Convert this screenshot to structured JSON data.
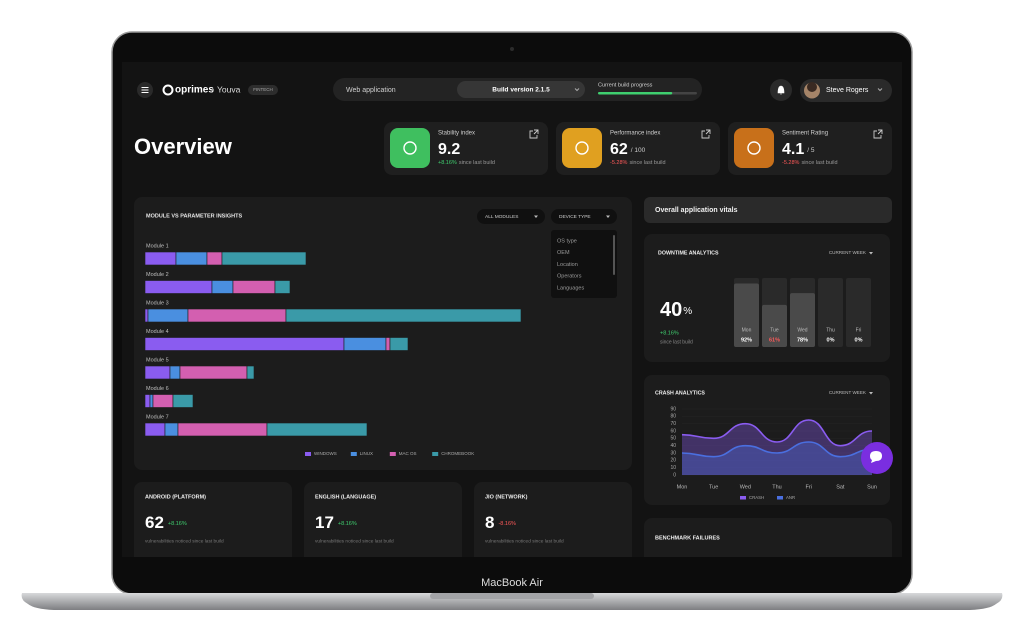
{
  "device": {
    "label": "MacBook Air"
  },
  "header": {
    "brand": "oprimes",
    "project": "Youva",
    "tag": "FINTECH",
    "app_type": "Web application",
    "build": "Build version 2.1.5",
    "progress_label": "Current build progress",
    "progress": 75,
    "user": "Steve Rogers"
  },
  "page_title": "Overview",
  "kpis": [
    {
      "title": "Stability index",
      "value": 9.2,
      "change": "+8.16%",
      "note": "since last build",
      "color": "#3fbf5f"
    },
    {
      "title": "Performance index",
      "value": 62,
      "unit": "/ 100",
      "change": "-5.28%",
      "note": "since last build",
      "color": "#e0a020"
    },
    {
      "title": "Sentiment Rating",
      "value": 4.1,
      "unit": "/ 5",
      "change": "-5.28%",
      "note": "since last build",
      "color": "#c8701a"
    }
  ],
  "module_chart": {
    "type": "bar",
    "orientation": "horizontal",
    "stacked": true,
    "title": "MODULE VS PARAMETER INSIGHTS",
    "filters": [
      "ALL MODULES",
      "DEVICE TYPE"
    ],
    "filter_options": [
      "OS type",
      "OEM",
      "Location",
      "Operators",
      "Languages"
    ],
    "categories": [
      "Module 1",
      "Module 2",
      "Module 3",
      "Module 4",
      "Module 5",
      "Module 6",
      "Module 7"
    ],
    "xlim": [
      0,
      400
    ],
    "series": [
      {
        "name": "WINDOWS",
        "color": "#8a5cf0",
        "values": [
          31,
          67,
          3,
          199,
          25,
          5,
          20
        ]
      },
      {
        "name": "LINUX",
        "color": "#4a8fe0",
        "values": [
          31,
          21,
          40,
          42,
          10,
          3,
          13
        ]
      },
      {
        "name": "MAC OS",
        "color": "#d35fb0",
        "values": [
          15,
          42,
          98,
          4,
          67,
          20,
          89
        ]
      },
      {
        "name": "CHROMEBOOK",
        "color": "#3a9aa8",
        "values": [
          84,
          15,
          235,
          18,
          7,
          20,
          100
        ]
      }
    ]
  },
  "vitals_title": "Overall application vitals",
  "downtime": {
    "type": "bar",
    "title": "DOWNTIME ANALYTICS",
    "period": "CURRENT WEEK",
    "value": 40,
    "unit": "%",
    "change": "+8.16%",
    "note": "since last build",
    "categories": [
      "Mon",
      "Tue",
      "Wed",
      "Thu",
      "Fri"
    ],
    "values": [
      92,
      61,
      78,
      0,
      0
    ],
    "value_labels": [
      "92%",
      "61%",
      "78%",
      "0%",
      "0%"
    ],
    "value_label_colors": [
      "#ffffff",
      "#ff5a5a",
      "#ffffff",
      "#ffffff",
      "#ffffff"
    ],
    "ylim": [
      0,
      100
    ],
    "color": "#4a4a4a"
  },
  "crash": {
    "type": "area",
    "title": "CRASH ANALYTICS",
    "period": "CURRENT WEEK",
    "categories": [
      "Mon",
      "Tue",
      "Wed",
      "Thu",
      "Fri",
      "Sat",
      "Sun"
    ],
    "ylim": [
      0,
      90
    ],
    "yticks": [
      0,
      10,
      20,
      30,
      40,
      50,
      60,
      70,
      80,
      90
    ],
    "series": [
      {
        "name": "CRASH",
        "color": "#8a5cf0",
        "values": [
          55,
          50,
          70,
          45,
          75,
          40,
          60
        ]
      },
      {
        "name": "ANR",
        "color": "#4a6fe0",
        "values": [
          30,
          25,
          40,
          30,
          45,
          25,
          35
        ]
      }
    ]
  },
  "platform_cards": [
    {
      "title": "ANDROID (PLATFORM)",
      "value": 62,
      "change": "+8.16%",
      "note": "vulnerabilities noticed since last build"
    },
    {
      "title": "ENGLISH (LANGUAGE)",
      "value": 17,
      "change": "+8.16%",
      "note": "vulnerabilities noticed since last build"
    },
    {
      "title": "JIO (NETWORK)",
      "value": 8,
      "change": "-8.16%",
      "note": "vulnerabilities noticed since last build"
    }
  ],
  "benchmark_title": "BENCHMARK FAILURES"
}
